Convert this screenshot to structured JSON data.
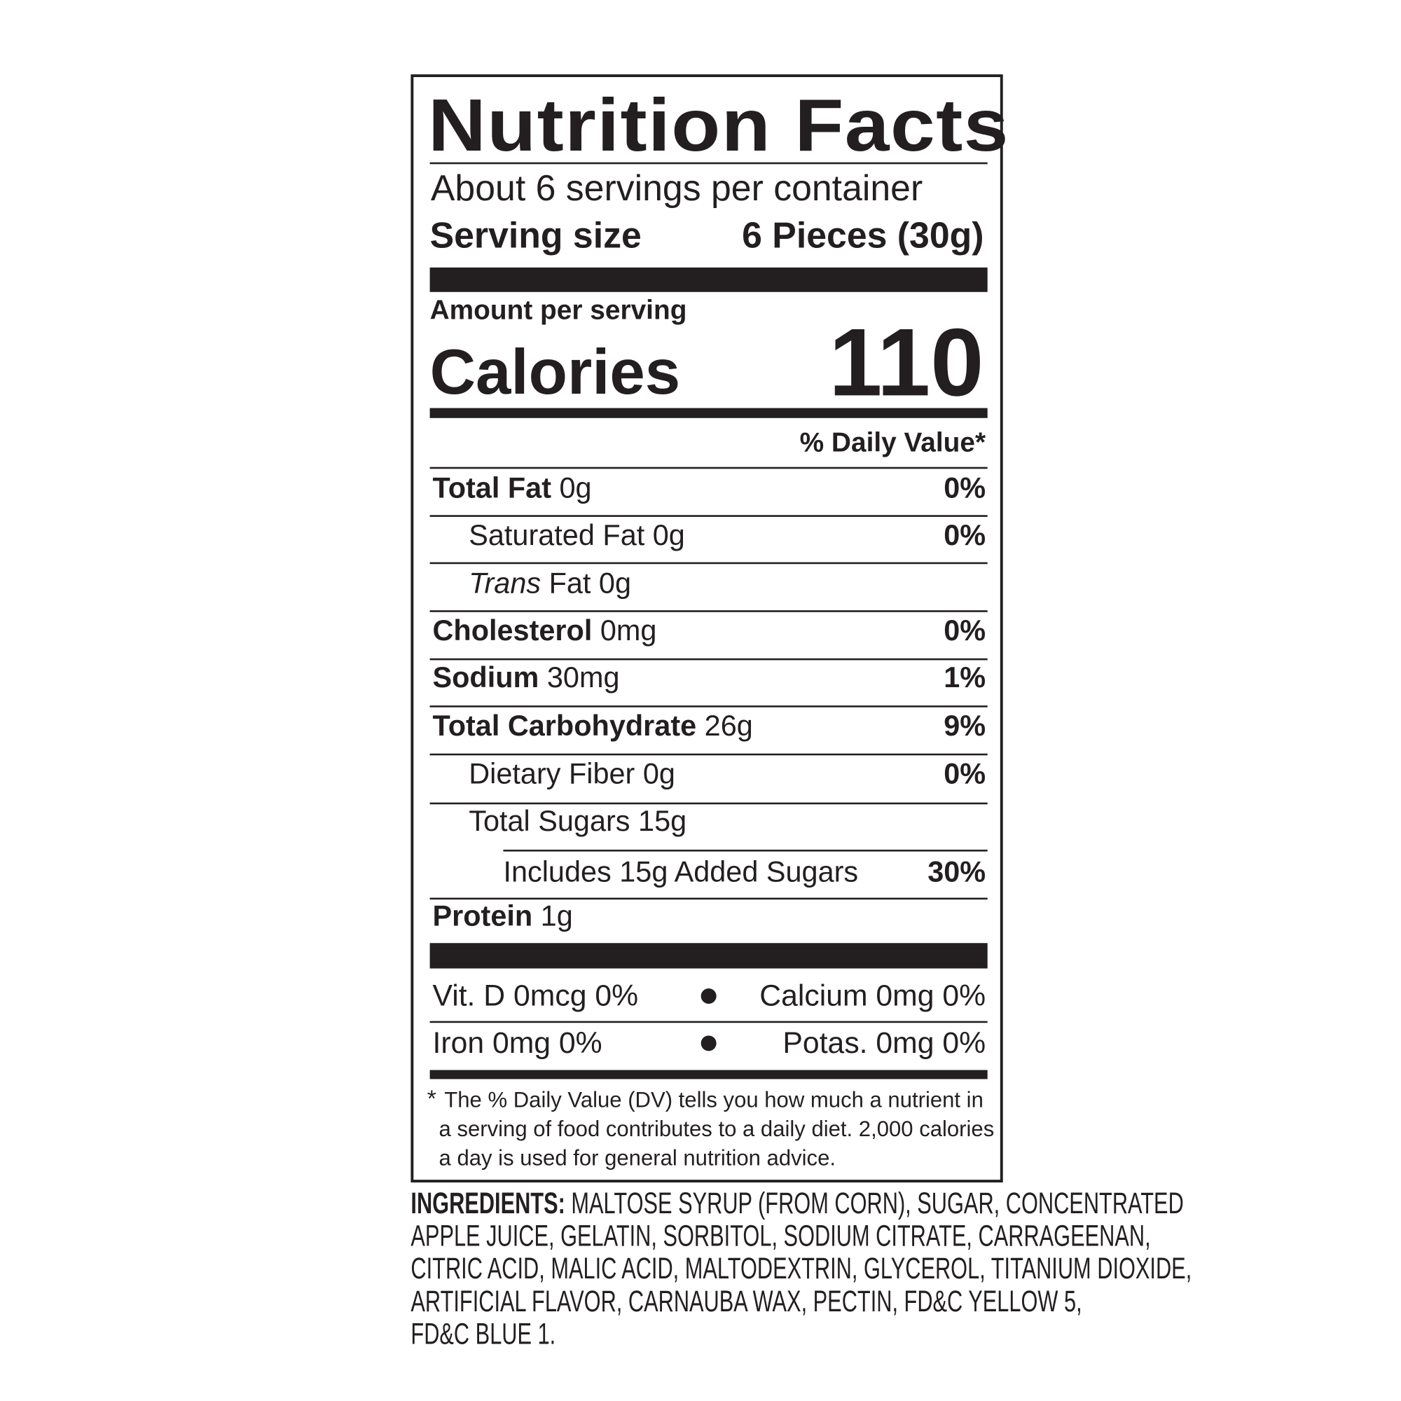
{
  "header": {
    "title": "Nutrition Facts",
    "servings": "About 6 servings per container",
    "serving_size_label": "Serving size",
    "serving_size_value": "6 Pieces (30g)"
  },
  "calories": {
    "amount_per_serving": "Amount per serving",
    "label": "Calories",
    "value": "110",
    "dv_header": "% Daily Value*"
  },
  "nutrients": [
    {
      "label": "Total Fat",
      "amount": "0g",
      "dv": "0%"
    },
    {
      "label": "Saturated Fat 0g",
      "dv": "0%"
    },
    {
      "label": "Trans",
      "amount": "Fat 0g"
    },
    {
      "label": "Cholesterol",
      "amount": "0mg",
      "dv": "0%"
    },
    {
      "label": "Sodium",
      "amount": "30mg",
      "dv": "1%"
    },
    {
      "label": "Total Carbohydrate",
      "amount": "26g",
      "dv": "9%"
    },
    {
      "label": "Dietary Fiber 0g",
      "dv": "0%"
    },
    {
      "label": "Total Sugars 15g"
    },
    {
      "label": "Includes 15g Added Sugars",
      "dv": "30%"
    },
    {
      "label": "Protein",
      "amount": "1g"
    }
  ],
  "vitamins": [
    [
      "Vit. D 0mcg 0%",
      "Calcium 0mg 0%"
    ],
    [
      "Iron 0mg 0%",
      "Potas. 0mg 0%"
    ]
  ],
  "footnote": {
    "mark": "*",
    "lines": [
      "The % Daily Value (DV) tells you how much a nutrient in",
      "a serving of food contributes to a daily diet. 2,000 calories",
      "a day is used for general nutrition advice."
    ]
  },
  "ingredients": {
    "label": "INGREDIENTS:",
    "lines": [
      "MALTOSE SYRUP (FROM CORN), SUGAR, CONCENTRATED",
      "APPLE JUICE, GELATIN, SORBITOL, SODIUM CITRATE, CARRAGEENAN,",
      "CITRIC ACID, MALIC ACID, MALTODEXTRIN, GLYCEROL, TITANIUM DIOXIDE,",
      "ARTIFICIAL FLAVOR, CARNAUBA WAX, PECTIN, FD&C YELLOW 5,",
      "FD&C BLUE 1."
    ]
  }
}
